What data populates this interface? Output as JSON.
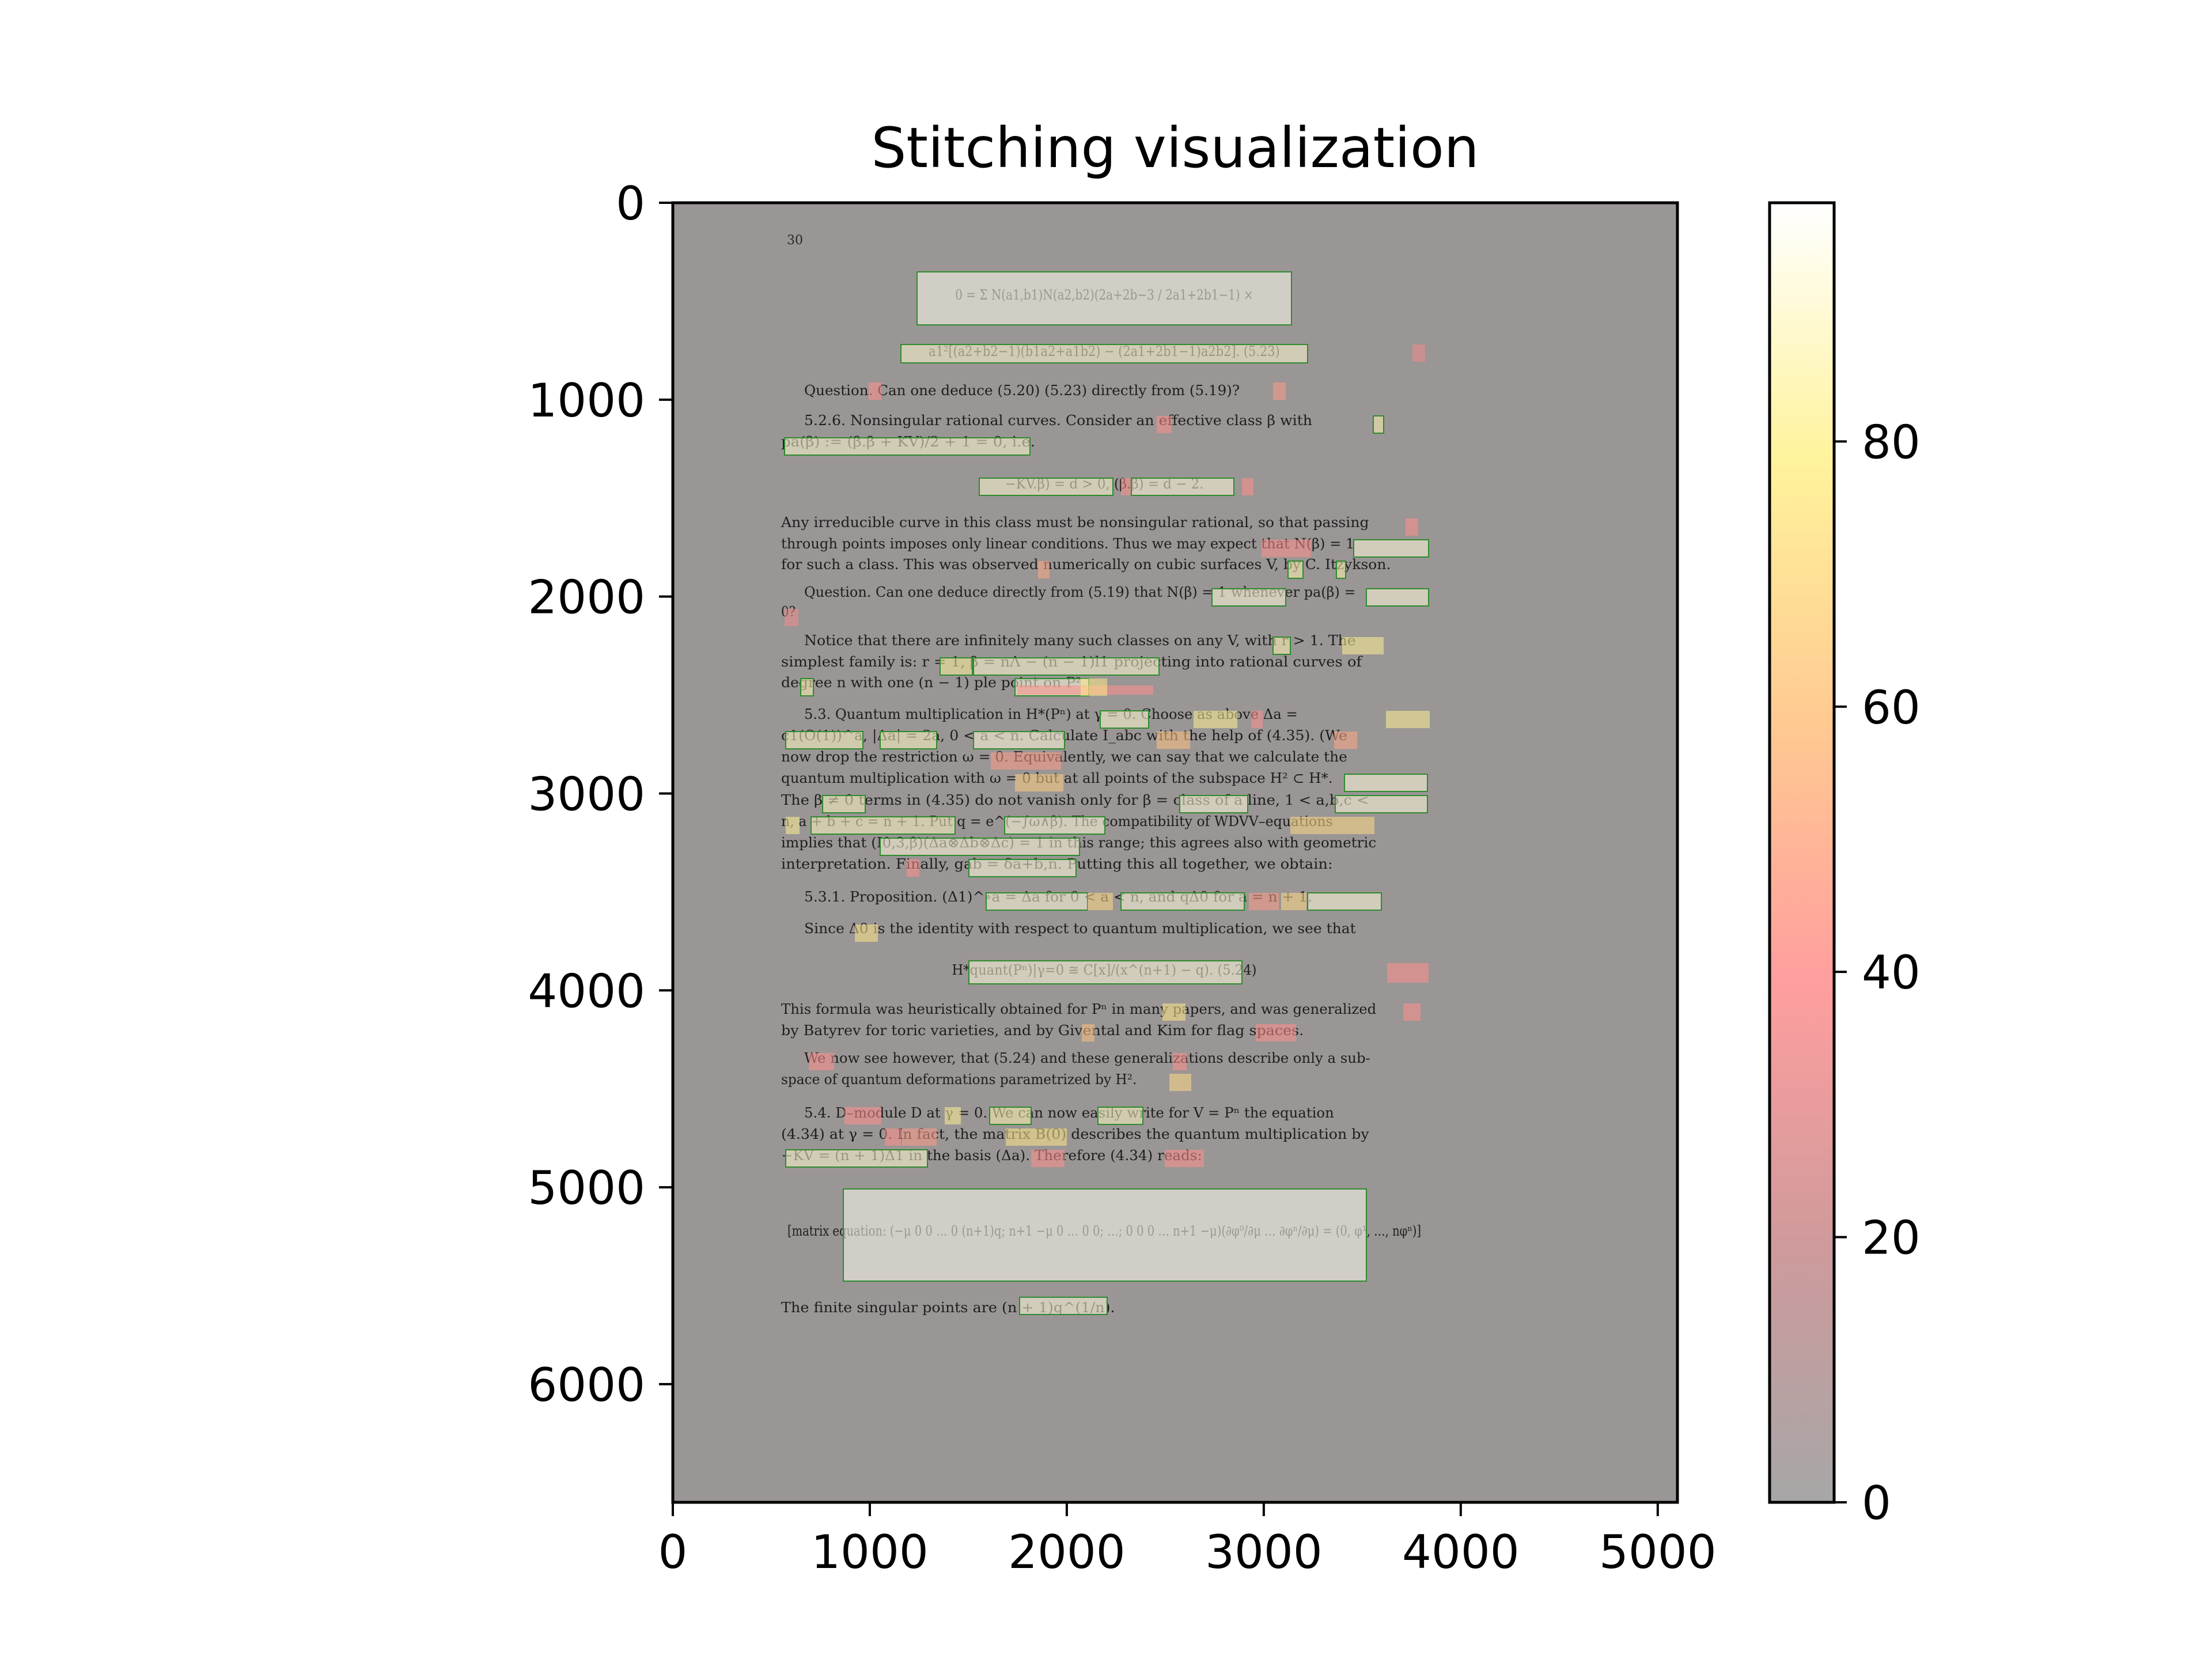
{
  "chart_data": {
    "type": "heatmap",
    "title": "Stitching visualization",
    "xlabel": "",
    "ylabel": "",
    "x_ticks": [
      0,
      1000,
      2000,
      3000,
      4000,
      5000
    ],
    "y_ticks": [
      0,
      1000,
      2000,
      3000,
      4000,
      5000,
      6000
    ],
    "xlim": [
      0,
      5100
    ],
    "ylim": [
      6600,
      0
    ],
    "grid": false,
    "colorbar": {
      "ticks": [
        0,
        20,
        40,
        60,
        80
      ],
      "range": [
        0,
        98
      ],
      "colormap": [
        "#979797",
        "#c7888a",
        "#ff8d8d",
        "#ffc07e",
        "#fff08a",
        "#ffffff"
      ]
    },
    "page_background": "#9a9695",
    "box_stroke": "#2e8b2e",
    "page": {
      "number": "30",
      "text_lines": [
        "0 = Σ N(a1,b1)N(a2,b2)(2a+2b−3 / 2a1+2b1−1) ×",
        "a1²[(a2+b2−1)(b1a2+a1b2) − (2a1+2b1−1)a2b2].   (5.23)",
        "Question. Can one deduce (5.20) (5.23) directly from (5.19)?",
        "5.2.6. Nonsingular rational curves. Consider an effective class β with",
        "pa(β) := (β.β + KV)/2 + 1 = 0, i.e.",
        "−KV.β) = d > 0, (β.β) = d − 2.",
        "Any irreducible curve in this class must be nonsingular rational, so that passing",
        "through points imposes only linear conditions. Thus we may expect that N(β) = 1",
        "for such a class. This was observed numerically on cubic surfaces V, by C. Itzykson.",
        "Question. Can one deduce directly from (5.19) that N(β) = 1 whenever pa(β) =",
        "0?",
        "Notice that there are infinitely many such classes on any V, with r > 1. The",
        "simplest family is: r = 1, β = nΛ − (n − 1)l1 projecting into rational curves of",
        "degree n with one (n − 1) ple point on P².",
        "5.3. Quantum multiplication in H*(Pⁿ) at γ = 0. Choose as above Δa =",
        "c1(O(1))^a, |Δa| = 2a, 0 < a < n. Calculate I_abc with the help of (4.35). (We",
        "now drop the restriction ω = 0. Equivalently, we can say that we calculate the",
        "quantum multiplication with ω = 0 but at all points of the subspace H² ⊂ H*.",
        "The β ≠ 0 terms in (4.35) do not vanish only for β = class of a line, 1 < a,b,c <",
        "n, a + b + c = n + 1. Put q = e^(−∫ω∧β). The compatibility of WDVV–equations",
        "implies that (I0,3,β)(Δa⊗Δb⊗Δc) = 1 in this range; this agrees also with geometric",
        "interpretation. Finally, gab = δa+b,n. Putting this all together, we obtain:",
        "5.3.1. Proposition. (Δ1)^∘a = Δa for 0 < a < n, and qΔ0 for a = n + 1.",
        "Since Δ0 is the identity with respect to quantum multiplication, we see that",
        "H*quant(Pⁿ)|γ=0 ≅ C[x]/(x^(n+1) − q).   (5.24)",
        "This formula was heuristically obtained for Pⁿ in many papers, and was generalized",
        "by Batyrev for toric varieties, and by Givental and Kim for flag spaces.",
        "We now see however, that (5.24) and these generalizations describe only a sub-",
        "space of quantum deformations parametrized by H².",
        "5.4. D–module D at γ = 0. We can now easily write for V = Pⁿ the equation",
        "(4.34) at γ = 0. In fact, the matrix B(0) describes the quantum multiplication by",
        "−KV = (n + 1)Δ1 in the basis (Δa). Therefore (4.34) reads:",
        "[matrix equation: (−μ 0 0 … 0 (n+1)q; n+1 −μ 0 … 0 0; …; 0 0 0 … n+1 −μ)(∂φ⁰/∂μ … ∂φⁿ/∂μ) = (0, φ¹, …, nφⁿ)]",
        "The finite singular points are (n + 1)q^(1/n)."
      ]
    }
  }
}
